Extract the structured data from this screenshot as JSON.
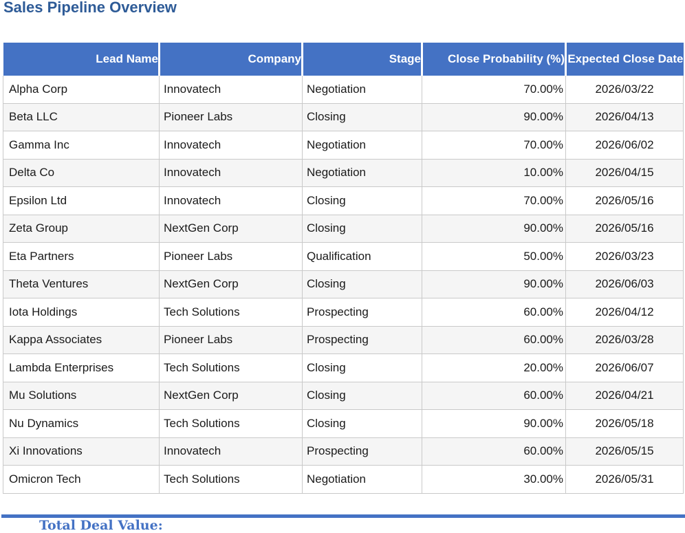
{
  "title": "Sales Pipeline Overview",
  "table": {
    "columns": [
      "Lead Name",
      "Company",
      "Stage",
      "Close Probability (%)",
      "Expected Close Date"
    ],
    "rows": [
      {
        "lead": "Alpha Corp",
        "company": "Innovatech",
        "stage": "Negotiation",
        "probability": "70.00%",
        "close_date": "2026/03/22"
      },
      {
        "lead": "Beta LLC",
        "company": "Pioneer Labs",
        "stage": "Closing",
        "probability": "90.00%",
        "close_date": "2026/04/13"
      },
      {
        "lead": "Gamma Inc",
        "company": "Innovatech",
        "stage": "Negotiation",
        "probability": "70.00%",
        "close_date": "2026/06/02"
      },
      {
        "lead": "Delta Co",
        "company": "Innovatech",
        "stage": "Negotiation",
        "probability": "10.00%",
        "close_date": "2026/04/15"
      },
      {
        "lead": "Epsilon Ltd",
        "company": "Innovatech",
        "stage": "Closing",
        "probability": "70.00%",
        "close_date": "2026/05/16"
      },
      {
        "lead": "Zeta Group",
        "company": "NextGen Corp",
        "stage": "Closing",
        "probability": "90.00%",
        "close_date": "2026/05/16"
      },
      {
        "lead": "Eta Partners",
        "company": "Pioneer Labs",
        "stage": "Qualification",
        "probability": "50.00%",
        "close_date": "2026/03/23"
      },
      {
        "lead": "Theta Ventures",
        "company": "NextGen Corp",
        "stage": "Closing",
        "probability": "90.00%",
        "close_date": "2026/06/03"
      },
      {
        "lead": "Iota Holdings",
        "company": "Tech Solutions",
        "stage": "Prospecting",
        "probability": "60.00%",
        "close_date": "2026/04/12"
      },
      {
        "lead": "Kappa Associates",
        "company": "Pioneer Labs",
        "stage": "Prospecting",
        "probability": "60.00%",
        "close_date": "2026/03/28"
      },
      {
        "lead": "Lambda Enterprises",
        "company": "Tech Solutions",
        "stage": "Closing",
        "probability": "20.00%",
        "close_date": "2026/06/07"
      },
      {
        "lead": "Mu Solutions",
        "company": "NextGen Corp",
        "stage": "Closing",
        "probability": "60.00%",
        "close_date": "2026/04/21"
      },
      {
        "lead": "Nu Dynamics",
        "company": "Tech Solutions",
        "stage": "Closing",
        "probability": "90.00%",
        "close_date": "2026/05/18"
      },
      {
        "lead": "Xi Innovations",
        "company": "Innovatech",
        "stage": "Prospecting",
        "probability": "60.00%",
        "close_date": "2026/05/15"
      },
      {
        "lead": "Omicron Tech",
        "company": "Tech Solutions",
        "stage": "Negotiation",
        "probability": "30.00%",
        "close_date": "2026/05/31"
      }
    ]
  },
  "footer": {
    "total_label": "Total Deal Value:"
  },
  "colors": {
    "header_bg": "#4472C4",
    "header_text": "#FFFFFF",
    "title_text": "#2E5B97",
    "row_alt_bg": "#F5F5F5",
    "grid_line": "#C9C9C9",
    "footer_rule": "#4472C4",
    "footer_text": "#4472C4"
  }
}
